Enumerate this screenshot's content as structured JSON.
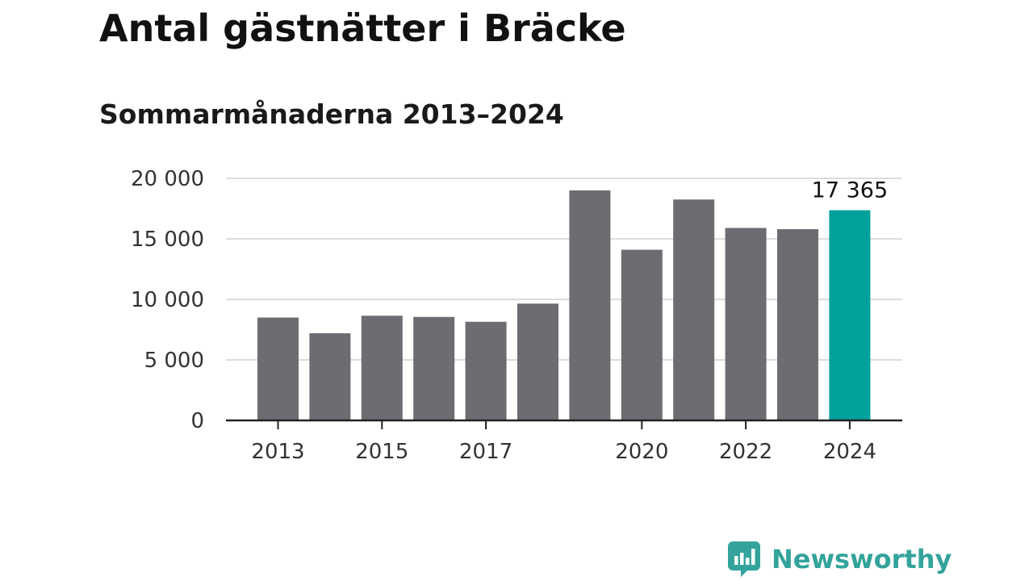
{
  "title": "Antal gästnätter i Bräcke",
  "subtitle": "Sommarmånaderna 2013–2024",
  "brand": {
    "name": "Newsworthy",
    "color": "#33a39b",
    "icon": "bar-chart-speech-bubble-icon"
  },
  "colors": {
    "bar": "#6d6c72",
    "highlight": "#00a19a",
    "grid": "#dcdcdc",
    "axis": "#222222"
  },
  "chart_data": {
    "type": "bar",
    "categories": [
      "2013",
      "2014",
      "2015",
      "2016",
      "2017",
      "2018",
      "2019",
      "2020",
      "2021",
      "2022",
      "2023",
      "2024"
    ],
    "values": [
      8500,
      7200,
      8650,
      8550,
      8150,
      9650,
      19000,
      14100,
      18250,
      15900,
      15800,
      17365
    ],
    "highlight_index": 11,
    "highlight_label": "17 365",
    "xtick_labels": [
      "2013",
      "2015",
      "2017",
      "2020",
      "2022",
      "2024"
    ],
    "ytick_values": [
      0,
      5000,
      10000,
      15000,
      20000
    ],
    "ytick_labels": [
      "0",
      "5 000",
      "10 000",
      "15 000",
      "20 000"
    ],
    "ylim": [
      0,
      20000
    ],
    "grid": true,
    "legend": "none"
  }
}
